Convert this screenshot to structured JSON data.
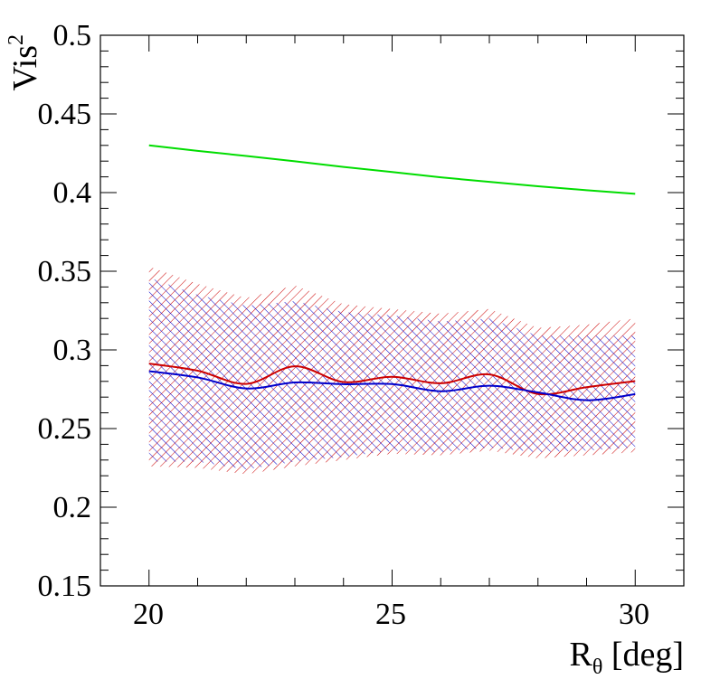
{
  "chart_data": {
    "type": "line",
    "title": "",
    "xlabel": {
      "main": "R",
      "sub": "θ",
      "rest": " [deg]"
    },
    "ylabel": {
      "main": "Vis",
      "sup": "2"
    },
    "xlim": [
      19,
      31
    ],
    "ylim": [
      0.15,
      0.5
    ],
    "xticks": [
      20,
      25,
      30
    ],
    "xtick_labels": [
      "20",
      "25",
      "30"
    ],
    "yticks": [
      0.15,
      0.2,
      0.25,
      0.3,
      0.35,
      0.4,
      0.45,
      0.5
    ],
    "ytick_labels": [
      "0.15",
      "0.2",
      "0.25",
      "0.3",
      "0.35",
      "0.4",
      "0.45",
      "0.5"
    ],
    "x": [
      20,
      21,
      22,
      23,
      24,
      25,
      26,
      27,
      28,
      29,
      30
    ],
    "series": [
      {
        "name": "green",
        "color": "#00dd00",
        "values": [
          0.43,
          0.4265,
          0.4233,
          0.4199,
          0.4163,
          0.4131,
          0.4097,
          0.4068,
          0.404,
          0.4015,
          0.3992
        ]
      },
      {
        "name": "red",
        "color": "#cc0000",
        "values": [
          0.2913,
          0.2868,
          0.2784,
          0.2896,
          0.2796,
          0.2829,
          0.2788,
          0.2844,
          0.272,
          0.2763,
          0.2802
        ]
      },
      {
        "name": "blue",
        "color": "#0000cc",
        "values": [
          0.2865,
          0.2825,
          0.2755,
          0.2793,
          0.2782,
          0.2783,
          0.2737,
          0.2772,
          0.273,
          0.268,
          0.2719
        ]
      }
    ],
    "bands": [
      {
        "name": "red-band",
        "color": "#cc0000",
        "hatch": "diagonal-45",
        "upper": [
          0.353,
          0.342,
          0.333,
          0.341,
          0.329,
          0.326,
          0.323,
          0.326,
          0.314,
          0.316,
          0.32
        ],
        "lower": [
          0.226,
          0.225,
          0.221,
          0.226,
          0.23,
          0.234,
          0.233,
          0.236,
          0.231,
          0.233,
          0.235
        ]
      },
      {
        "name": "blue-band",
        "color": "#0000cc",
        "hatch": "diagonal-135",
        "upper": [
          0.346,
          0.335,
          0.328,
          0.331,
          0.324,
          0.322,
          0.318,
          0.32,
          0.309,
          0.309,
          0.309
        ],
        "lower": [
          0.229,
          0.229,
          0.224,
          0.229,
          0.232,
          0.236,
          0.235,
          0.238,
          0.235,
          0.236,
          0.238
        ]
      }
    ]
  }
}
